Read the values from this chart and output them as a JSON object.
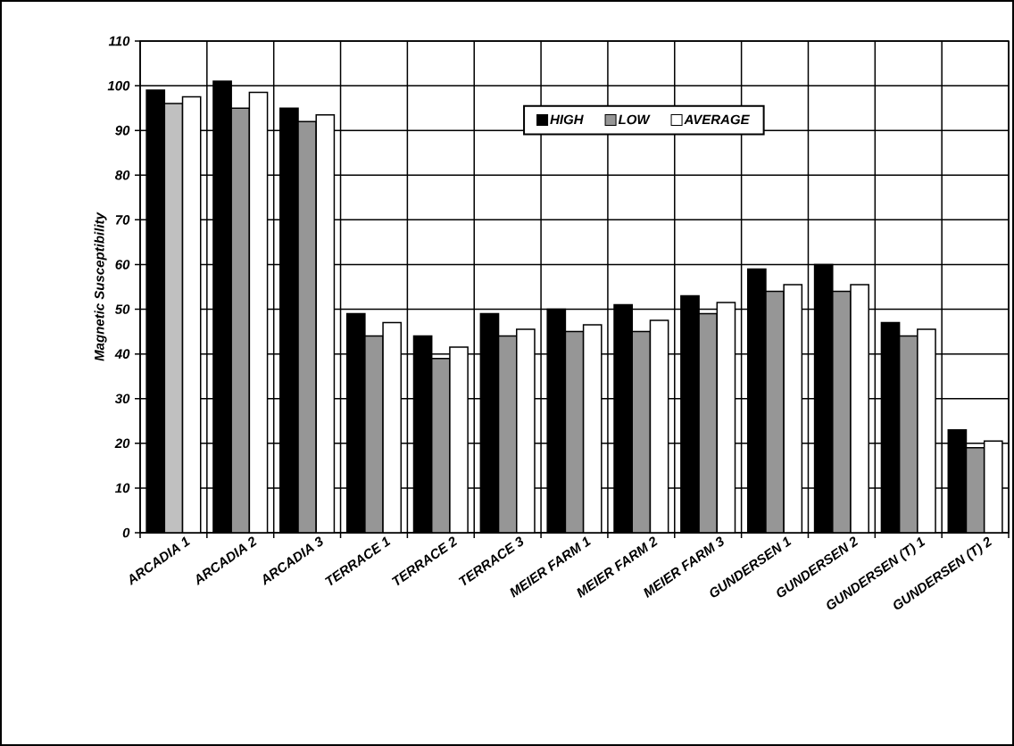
{
  "chart_data": {
    "type": "bar",
    "ylabel": "Magnetic Susceptibility",
    "categories": [
      "ARCADIA 1",
      "ARCADIA 2",
      "ARCADIA 3",
      "TERRACE 1",
      "TERRACE 2",
      "TERRACE 3",
      "MEIER FARM 1",
      "MEIER FARM 2",
      "MEIER FARM 3",
      "GUNDERSEN 1",
      "GUNDERSEN 2",
      "GUNDERSEN (T) 1",
      "GUNDERSEN (T) 2"
    ],
    "series": [
      {
        "name": "HIGH",
        "color": "#000000",
        "values": [
          99,
          101,
          95,
          49,
          44,
          49,
          50,
          51,
          53,
          59,
          60,
          47,
          23
        ]
      },
      {
        "name": "LOW",
        "color": "#969696",
        "colors": [
          "#c0c0c0",
          "#969696",
          "#969696",
          "#969696",
          "#969696",
          "#969696",
          "#969696",
          "#969696",
          "#969696",
          "#969696",
          "#969696",
          "#969696",
          "#969696"
        ],
        "values": [
          96,
          95,
          92,
          44,
          39,
          44,
          45,
          45,
          49,
          54,
          54,
          44,
          19
        ]
      },
      {
        "name": "AVERAGE",
        "color": "#ffffff",
        "values": [
          97.5,
          98.5,
          93.5,
          47,
          41.5,
          45.5,
          46.5,
          47.5,
          51.5,
          55.5,
          55.5,
          45.5,
          20.5
        ]
      }
    ],
    "ylim": [
      0,
      110
    ],
    "yticks": [
      0,
      10,
      20,
      30,
      40,
      50,
      60,
      70,
      80,
      90,
      100,
      110
    ],
    "grid": true,
    "legend": "top"
  }
}
